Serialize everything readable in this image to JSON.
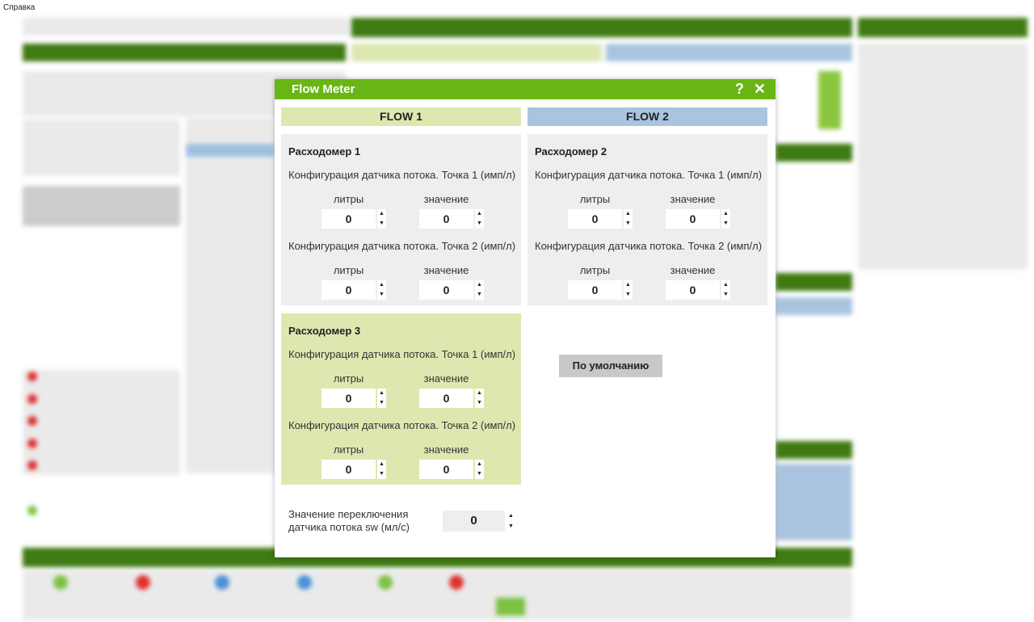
{
  "menu": {
    "help": "Справка"
  },
  "dialog": {
    "title": "Flow Meter",
    "help_icon": "?",
    "close_icon": "✕",
    "flow1_header": "FLOW 1",
    "flow2_header": "FLOW 2",
    "colors": {
      "header": "#6ab516",
      "flow1": "#dce8b0",
      "flow2": "#aac4e0"
    },
    "meters": [
      {
        "title": "Расходомер 1",
        "point1": "Конфигурация датчика потока. Точка 1 (имп/л)",
        "point2": "Конфигурация датчика потока. Точка 2 (имп/л)",
        "col_liters": "литры",
        "col_value": "значение",
        "p1_liters": "0",
        "p1_value": "0",
        "p2_liters": "0",
        "p2_value": "0"
      },
      {
        "title": "Расходомер 2",
        "point1": "Конфигурация датчика потока. Точка 1 (имп/л)",
        "point2": "Конфигурация датчика потока. Точка 2 (имп/л)",
        "col_liters": "литры",
        "col_value": "значение",
        "p1_liters": "0",
        "p1_value": "0",
        "p2_liters": "0",
        "p2_value": "0"
      },
      {
        "title": "Расходомер 3",
        "point1": "Конфигурация датчика потока. Точка 1 (имп/л)",
        "point2": "Конфигурация датчика потока. Точка 2 (имп/л)",
        "col_liters": "литры",
        "col_value": "значение",
        "p1_liters": "0",
        "p1_value": "0",
        "p2_liters": "0",
        "p2_value": "0"
      }
    ],
    "default_button": "По умолчанию",
    "switch_label_line1": "Значение переключения",
    "switch_label_line2": "датчика потока sw (мл/с)",
    "switch_value": "0",
    "spin_up": "▲",
    "spin_down": "▼"
  }
}
